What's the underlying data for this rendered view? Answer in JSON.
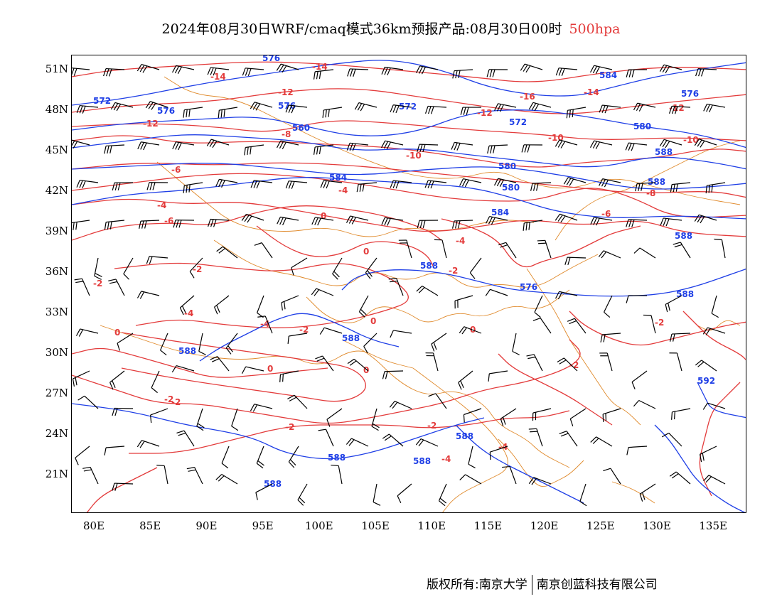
{
  "title": {
    "main": "2024年08月30日WRF/cmaq模式36km预报产品:08月30日00时",
    "level": "500hpa",
    "level_color": "#e33b3b"
  },
  "axes": {
    "lat_labels": [
      "51N",
      "48N",
      "45N",
      "42N",
      "39N",
      "36N",
      "33N",
      "30N",
      "27N",
      "24N",
      "21N"
    ],
    "lon_labels": [
      "80E",
      "85E",
      "90E",
      "95E",
      "100E",
      "105E",
      "110E",
      "115E",
      "120E",
      "125E",
      "130E",
      "135E"
    ]
  },
  "map": {
    "geopotential_color": "#1f3fe6",
    "temperature_color": "#e33b3b",
    "border_color": "#e08a2c",
    "geopotential_labels": [
      "576",
      "572",
      "576",
      "576",
      "572",
      "560",
      "584",
      "588",
      "588",
      "576",
      "572",
      "580",
      "576",
      "584",
      "580",
      "580",
      "584",
      "588",
      "588",
      "588",
      "588",
      "592",
      "588",
      "588",
      "588",
      "588",
      "588"
    ],
    "temperature_labels": [
      "-14",
      "-14",
      "-16",
      "-14",
      "-12",
      "-12",
      "-12",
      "-12",
      "-10",
      "-10",
      "-10",
      "-8",
      "-8",
      "-6",
      "-6",
      "-4",
      "-6",
      "-4",
      "-4",
      "-2",
      "-2",
      "0",
      "0",
      "-2",
      "-2",
      "-4",
      "-4",
      "0",
      "0",
      "0",
      "-2",
      "-2",
      "-2",
      "-2",
      "-2",
      "-4",
      "0",
      "0",
      "-2",
      "-4"
    ]
  },
  "footer": {
    "copyright": "版权所有:南京大学",
    "company": "南京创蓝科技有限公司"
  }
}
